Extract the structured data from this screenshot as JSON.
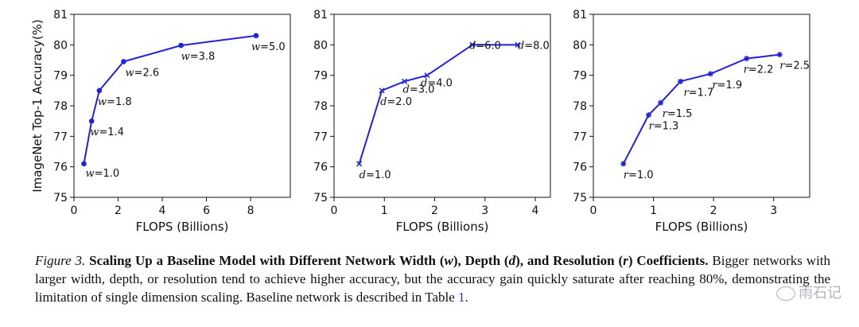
{
  "chart_data": [
    {
      "type": "line",
      "ylabel": "ImageNet Top-1 Accuracy(%)",
      "xlabel": "FLOPS (Billions)",
      "xlim": [
        0,
        9.8
      ],
      "ylim": [
        75,
        81
      ],
      "xticks": [
        0,
        2,
        4,
        6,
        8
      ],
      "yticks": [
        75,
        76,
        77,
        78,
        79,
        80,
        81
      ],
      "show_ylabel": true,
      "marker": "dot",
      "label_var": "w",
      "line_color": "#2222dd",
      "points": [
        {
          "x": 0.45,
          "y": 76.1,
          "var": "w",
          "label": "=1.0",
          "dx": 2,
          "dy": 16
        },
        {
          "x": 0.8,
          "y": 77.5,
          "var": "w",
          "label": "=1.4",
          "dx": -2,
          "dy": 18
        },
        {
          "x": 1.15,
          "y": 78.5,
          "var": "w",
          "label": "=1.8",
          "dx": -2,
          "dy": 18
        },
        {
          "x": 2.25,
          "y": 79.45,
          "var": "w",
          "label": "=2.6",
          "dx": 2,
          "dy": 18
        },
        {
          "x": 4.85,
          "y": 79.98,
          "var": "w",
          "label": "=3.8",
          "dx": 0,
          "dy": 18
        },
        {
          "x": 8.25,
          "y": 80.3,
          "var": "w",
          "label": "=5.0",
          "dx": -6,
          "dy": 18
        }
      ]
    },
    {
      "type": "line",
      "ylabel": "",
      "xlabel": "FLOPS (Billions)",
      "xlim": [
        0,
        4.3
      ],
      "ylim": [
        75,
        81
      ],
      "xticks": [
        0,
        1,
        2,
        3,
        4
      ],
      "yticks": [
        75,
        76,
        77,
        78,
        79,
        80,
        81
      ],
      "show_ylabel": false,
      "marker": "cross",
      "label_var": "d",
      "line_color": "#2222dd",
      "points": [
        {
          "x": 0.5,
          "y": 76.1,
          "var": "d",
          "label": "=1.0",
          "dx": 0,
          "dy": 18
        },
        {
          "x": 0.95,
          "y": 78.5,
          "var": "d",
          "label": "=2.0",
          "dx": -2,
          "dy": 18
        },
        {
          "x": 1.4,
          "y": 78.8,
          "var": "d",
          "label": "=3.0",
          "dx": -2,
          "dy": 14
        },
        {
          "x": 1.85,
          "y": 79.0,
          "var": "d",
          "label": "=4.0",
          "dx": -8,
          "dy": 14
        },
        {
          "x": 2.75,
          "y": 80.0,
          "var": "d",
          "label": "=6.0",
          "dx": -4,
          "dy": 5
        },
        {
          "x": 3.65,
          "y": 80.0,
          "var": "d",
          "label": "=8.0",
          "dx": 0,
          "dy": 5
        }
      ]
    },
    {
      "type": "line",
      "ylabel": "",
      "xlabel": "FLOPS (Billions)",
      "xlim": [
        0,
        3.6
      ],
      "ylim": [
        75,
        81
      ],
      "xticks": [
        0,
        1,
        2,
        3
      ],
      "yticks": [
        75,
        76,
        77,
        78,
        79,
        80,
        81
      ],
      "show_ylabel": false,
      "marker": "star",
      "label_var": "r",
      "line_color": "#2222dd",
      "points": [
        {
          "x": 0.5,
          "y": 76.1,
          "var": "r",
          "label": "=1.0",
          "dx": 0,
          "dy": 18
        },
        {
          "x": 0.92,
          "y": 77.7,
          "var": "r",
          "label": "=1.3",
          "dx": 0,
          "dy": 18
        },
        {
          "x": 1.12,
          "y": 78.1,
          "var": "r",
          "label": "=1.5",
          "dx": 2,
          "dy": 18
        },
        {
          "x": 1.45,
          "y": 78.8,
          "var": "r",
          "label": "=1.7",
          "dx": 4,
          "dy": 18
        },
        {
          "x": 1.95,
          "y": 79.05,
          "var": "r",
          "label": "=1.9",
          "dx": 2,
          "dy": 18
        },
        {
          "x": 2.55,
          "y": 79.55,
          "var": "r",
          "label": "=2.2",
          "dx": -4,
          "dy": 18
        },
        {
          "x": 3.1,
          "y": 79.68,
          "var": "r",
          "label": "=2.5",
          "dx": 0,
          "dy": 18
        }
      ]
    }
  ],
  "caption": {
    "fig": "Figure 3.",
    "title_a": "Scaling Up a Baseline Model with Different Network Width (",
    "w": "w",
    "title_b": "), Depth (",
    "d": "d",
    "title_c": "), and Resolution (",
    "r": "r",
    "title_d": ") Coefficients.",
    "body": "Bigger networks with larger width, depth, or resolution tend to achieve higher accuracy, but the accuracy gain quickly saturate after reaching 80%, demonstrating the limitation of single dimension scaling. Baseline network is described in Table ",
    "ref": "1",
    "tail": "."
  },
  "watermark": "雨石记"
}
